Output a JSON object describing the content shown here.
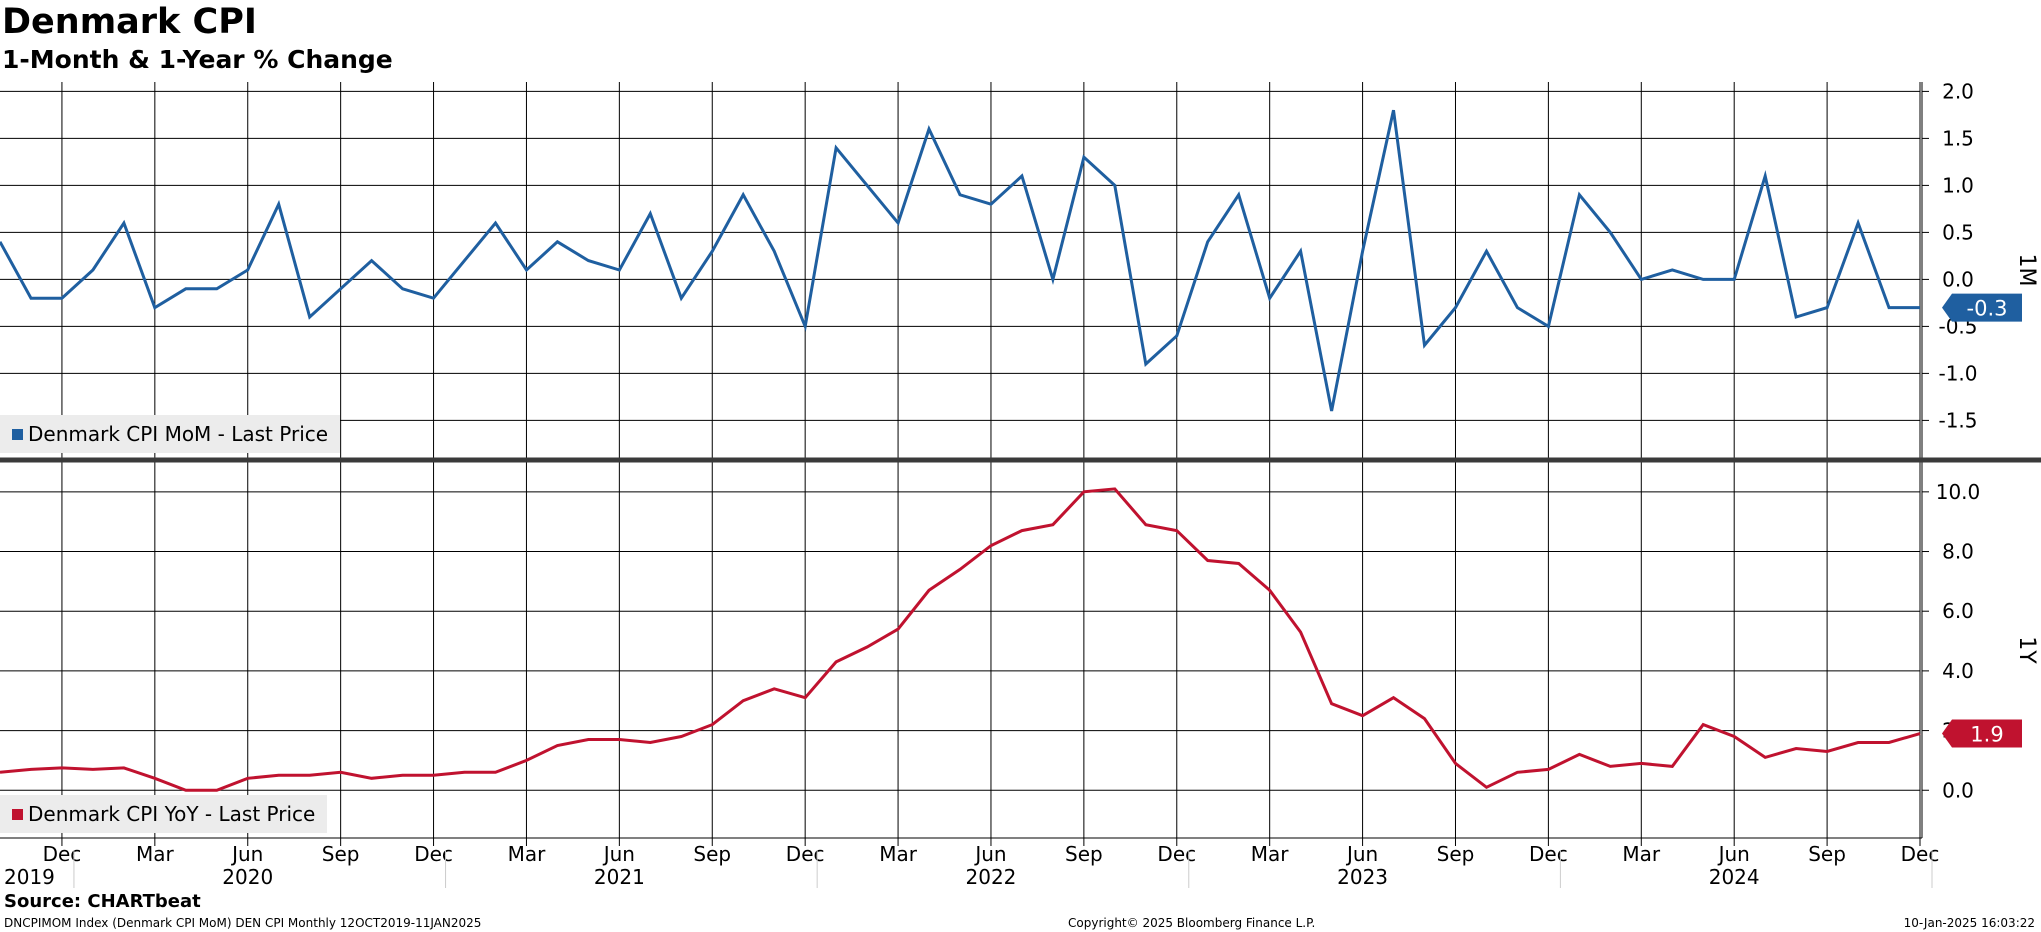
{
  "header": {
    "title": "Denmark CPI",
    "subtitle": "1-Month & 1-Year % Change"
  },
  "footer": {
    "source": "Source: CHARTbeat",
    "left": "DNCPIMOM Index (Denmark CPI MoM) DEN CPI  Monthly 12OCT2019-11JAN2025",
    "center": "Copyright© 2025 Bloomberg Finance L.P.",
    "right": "10-Jan-2025 16:03:22"
  },
  "colors": {
    "mom": "#1f5fa0",
    "yoy": "#c0122f",
    "grid": "#000000"
  },
  "chart_data": [
    {
      "type": "line",
      "panel_label": "1M",
      "x": [
        "2019-10",
        "2019-11",
        "2019-12",
        "2020-01",
        "2020-02",
        "2020-03",
        "2020-04",
        "2020-05",
        "2020-06",
        "2020-07",
        "2020-08",
        "2020-09",
        "2020-10",
        "2020-11",
        "2020-12",
        "2021-01",
        "2021-02",
        "2021-03",
        "2021-04",
        "2021-05",
        "2021-06",
        "2021-07",
        "2021-08",
        "2021-09",
        "2021-10",
        "2021-11",
        "2021-12",
        "2022-01",
        "2022-02",
        "2022-03",
        "2022-04",
        "2022-05",
        "2022-06",
        "2022-07",
        "2022-08",
        "2022-09",
        "2022-10",
        "2022-11",
        "2022-12",
        "2023-01",
        "2023-02",
        "2023-03",
        "2023-04",
        "2023-05",
        "2023-06",
        "2023-07",
        "2023-08",
        "2023-09",
        "2023-10",
        "2023-11",
        "2023-12",
        "2024-01",
        "2024-02",
        "2024-03",
        "2024-04",
        "2024-05",
        "2024-06",
        "2024-07",
        "2024-08",
        "2024-09",
        "2024-10",
        "2024-11",
        "2024-12"
      ],
      "series": [
        {
          "name": "Denmark CPI MoM - Last Price",
          "values": [
            0.4,
            -0.2,
            -0.2,
            0.1,
            0.6,
            -0.3,
            -0.1,
            -0.1,
            0.1,
            0.8,
            -0.4,
            -0.1,
            0.2,
            -0.1,
            -0.2,
            0.2,
            0.6,
            0.1,
            0.4,
            0.2,
            0.1,
            0.7,
            -0.2,
            0.3,
            0.9,
            0.3,
            -0.5,
            1.4,
            1.0,
            0.6,
            1.6,
            0.9,
            0.8,
            1.1,
            0.0,
            1.3,
            1.0,
            -0.9,
            -0.6,
            0.4,
            0.9,
            -0.2,
            0.3,
            -1.4,
            0.3,
            1.8,
            -0.7,
            -0.3,
            0.3,
            -0.3,
            -0.5,
            0.9,
            0.5,
            0.0,
            0.1,
            0.0,
            0.0,
            1.1,
            -0.4,
            -0.3,
            0.6,
            -0.3,
            -0.3
          ]
        }
      ],
      "last_value_label": "-0.3",
      "yticks": [
        -1.5,
        -1.0,
        -0.5,
        0.0,
        0.5,
        1.0,
        1.5,
        2.0
      ],
      "ytick_labels": [
        "-1.5",
        "-1.0",
        "-0.5",
        "0.0",
        "0.5",
        "1.0",
        "1.5",
        "2.0"
      ],
      "ylim": [
        -1.9,
        2.1
      ]
    },
    {
      "type": "line",
      "panel_label": "1Y",
      "x": [
        "2019-10",
        "2019-11",
        "2019-12",
        "2020-01",
        "2020-02",
        "2020-03",
        "2020-04",
        "2020-05",
        "2020-06",
        "2020-07",
        "2020-08",
        "2020-09",
        "2020-10",
        "2020-11",
        "2020-12",
        "2021-01",
        "2021-02",
        "2021-03",
        "2021-04",
        "2021-05",
        "2021-06",
        "2021-07",
        "2021-08",
        "2021-09",
        "2021-10",
        "2021-11",
        "2021-12",
        "2022-01",
        "2022-02",
        "2022-03",
        "2022-04",
        "2022-05",
        "2022-06",
        "2022-07",
        "2022-08",
        "2022-09",
        "2022-10",
        "2022-11",
        "2022-12",
        "2023-01",
        "2023-02",
        "2023-03",
        "2023-04",
        "2023-05",
        "2023-06",
        "2023-07",
        "2023-08",
        "2023-09",
        "2023-10",
        "2023-11",
        "2023-12",
        "2024-01",
        "2024-02",
        "2024-03",
        "2024-04",
        "2024-05",
        "2024-06",
        "2024-07",
        "2024-08",
        "2024-09",
        "2024-10",
        "2024-11",
        "2024-12"
      ],
      "series": [
        {
          "name": "Denmark CPI YoY - Last Price",
          "values": [
            0.6,
            0.7,
            0.75,
            0.7,
            0.75,
            0.4,
            0.0,
            0.0,
            0.4,
            0.5,
            0.5,
            0.6,
            0.4,
            0.5,
            0.5,
            0.6,
            0.6,
            1.0,
            1.5,
            1.7,
            1.7,
            1.6,
            1.8,
            2.2,
            3.0,
            3.4,
            3.1,
            4.3,
            4.8,
            5.4,
            6.7,
            7.4,
            8.2,
            8.7,
            8.9,
            10.0,
            10.1,
            8.9,
            8.7,
            7.7,
            7.6,
            6.7,
            5.3,
            2.9,
            2.5,
            3.1,
            2.4,
            0.9,
            0.1,
            0.6,
            0.7,
            1.2,
            0.8,
            0.9,
            0.8,
            2.2,
            1.8,
            1.1,
            1.4,
            1.3,
            1.6,
            1.6,
            1.9
          ]
        }
      ],
      "last_value_label": "1.9",
      "yticks": [
        0.0,
        2.0,
        4.0,
        6.0,
        8.0,
        10.0
      ],
      "ytick_labels": [
        "0.0",
        "2.0",
        "4.0",
        "6.0",
        "8.0",
        "10.0"
      ],
      "ylim": [
        -1.6,
        11.0
      ]
    }
  ],
  "x_axis": {
    "month_labels": [
      {
        "month": "2019-12",
        "label": "Dec"
      },
      {
        "month": "2020-03",
        "label": "Mar"
      },
      {
        "month": "2020-06",
        "label": "Jun"
      },
      {
        "month": "2020-09",
        "label": "Sep"
      },
      {
        "month": "2020-12",
        "label": "Dec"
      },
      {
        "month": "2021-03",
        "label": "Mar"
      },
      {
        "month": "2021-06",
        "label": "Jun"
      },
      {
        "month": "2021-09",
        "label": "Sep"
      },
      {
        "month": "2021-12",
        "label": "Dec"
      },
      {
        "month": "2022-03",
        "label": "Mar"
      },
      {
        "month": "2022-06",
        "label": "Jun"
      },
      {
        "month": "2022-09",
        "label": "Sep"
      },
      {
        "month": "2022-12",
        "label": "Dec"
      },
      {
        "month": "2023-03",
        "label": "Mar"
      },
      {
        "month": "2023-06",
        "label": "Jun"
      },
      {
        "month": "2023-09",
        "label": "Sep"
      },
      {
        "month": "2023-12",
        "label": "Dec"
      },
      {
        "month": "2024-03",
        "label": "Mar"
      },
      {
        "month": "2024-06",
        "label": "Jun"
      },
      {
        "month": "2024-09",
        "label": "Sep"
      },
      {
        "month": "2024-12",
        "label": "Dec"
      }
    ],
    "year_labels": [
      {
        "month": "2019-10",
        "label": "2019"
      },
      {
        "month": "2020-06",
        "label": "2020"
      },
      {
        "month": "2021-06",
        "label": "2021"
      },
      {
        "month": "2022-06",
        "label": "2022"
      },
      {
        "month": "2023-06",
        "label": "2023"
      },
      {
        "month": "2024-06",
        "label": "2024"
      }
    ]
  }
}
